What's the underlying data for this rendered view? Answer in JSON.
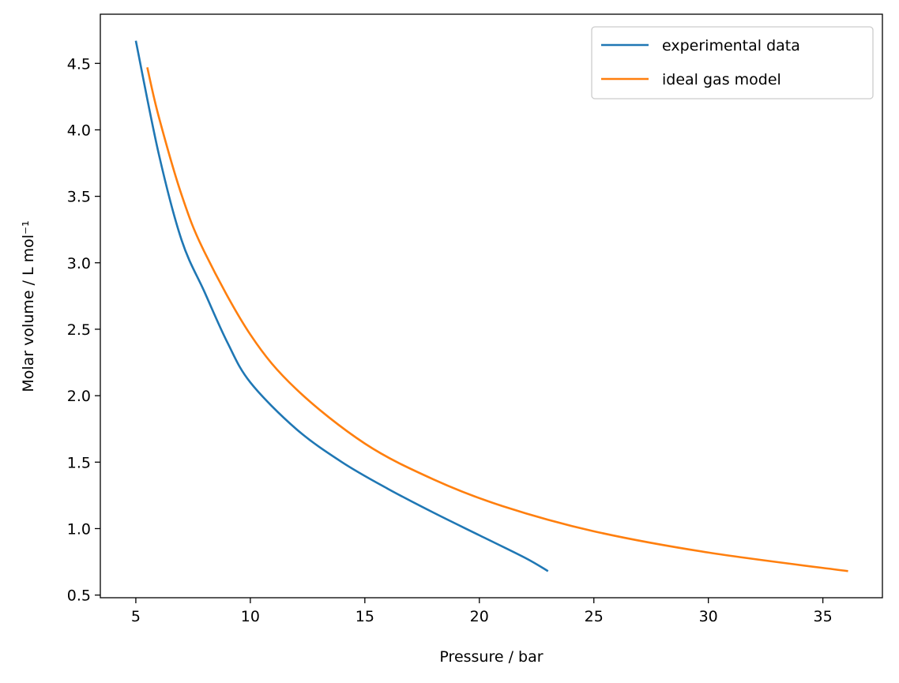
{
  "chart_data": {
    "type": "line",
    "title": "",
    "xlabel": "Pressure / bar",
    "ylabel": "Molar volume / L mol⁻¹",
    "xlim": [
      3.45,
      37.6
    ],
    "ylim": [
      0.48,
      4.87
    ],
    "xticks": [
      5,
      10,
      15,
      20,
      25,
      30,
      35
    ],
    "xtick_labels": [
      "5",
      "10",
      "15",
      "20",
      "25",
      "30",
      "35"
    ],
    "yticks": [
      0.5,
      1.0,
      1.5,
      2.0,
      2.5,
      3.0,
      3.5,
      4.0,
      4.5
    ],
    "ytick_labels": [
      "0.5",
      "1.0",
      "1.5",
      "2.0",
      "2.5",
      "3.0",
      "3.5",
      "4.0",
      "4.5"
    ],
    "grid": false,
    "legend_placement": "top-right",
    "series": [
      {
        "name": "experimental data",
        "color": "#1f77b4",
        "x": [
          5,
          6,
          7,
          8,
          9,
          10,
          12,
          14,
          16,
          18,
          20,
          22,
          23
        ],
        "y": [
          4.67,
          3.82,
          3.17,
          2.78,
          2.4,
          2.1,
          1.75,
          1.5,
          1.3,
          1.12,
          0.95,
          0.78,
          0.68
        ]
      },
      {
        "name": "ideal gas model",
        "color": "#ff7f0e",
        "x": [
          5.5,
          6,
          7,
          8,
          10,
          12,
          15,
          18,
          21,
          25,
          30,
          36.1
        ],
        "y": [
          4.47,
          4.1,
          3.51,
          3.08,
          2.46,
          2.05,
          1.64,
          1.37,
          1.17,
          0.98,
          0.82,
          0.68
        ]
      }
    ]
  }
}
